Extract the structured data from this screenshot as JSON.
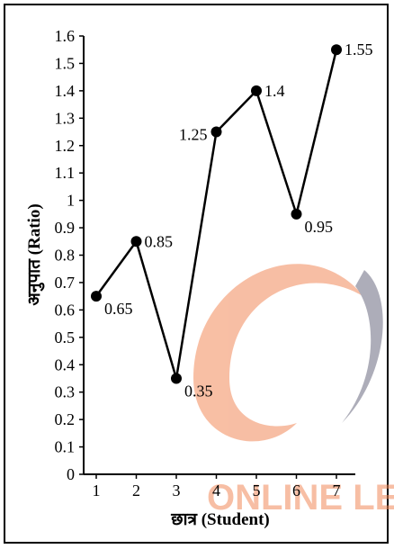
{
  "chart_data": {
    "type": "line",
    "xlabel": "छात्र (Student)",
    "ylabel": "अनुपात (Ratio)",
    "x": [
      1,
      2,
      3,
      4,
      5,
      6,
      7
    ],
    "values": [
      0.65,
      0.85,
      0.35,
      1.25,
      1.4,
      0.95,
      1.55
    ],
    "data_labels": [
      "0.65",
      "0.85",
      "0.35",
      "1.25",
      "1.4",
      "0.95",
      "1.55"
    ],
    "xticks": [
      "1",
      "2",
      "3",
      "4",
      "5",
      "6",
      "7"
    ],
    "yticks": [
      "0",
      "0.1",
      "0.2",
      "0.3",
      "0.4",
      "0.5",
      "0.6",
      "0.7",
      "0.8",
      "0.9",
      "1",
      "1.1",
      "1.2",
      "1.3",
      "1.4",
      "1.5",
      "1.6"
    ],
    "ylim": [
      0,
      1.6
    ],
    "xlim": [
      0.5,
      7.5
    ],
    "grid": false,
    "line_color": "#000000",
    "watermark": "ONLINE LEA"
  }
}
